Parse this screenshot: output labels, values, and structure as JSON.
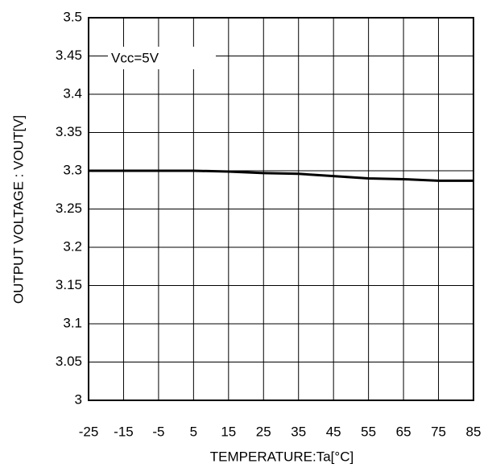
{
  "chart_data": {
    "type": "line",
    "x_label": "TEMPERATURE:Ta[°C]",
    "y_label": "OUTPUT VOLTAGE : VOUT[V]",
    "annotation": "Vcc=5V",
    "x": [
      -25,
      -15,
      -5,
      5,
      15,
      25,
      35,
      45,
      55,
      65,
      75,
      85
    ],
    "series": [
      {
        "color": "#000000",
        "values": [
          3.3,
          3.3,
          3.3,
          3.3,
          3.299,
          3.297,
          3.296,
          3.293,
          3.29,
          3.289,
          3.287,
          3.287
        ]
      }
    ],
    "xlim": [
      -25,
      85
    ],
    "xticks": [
      -25,
      -15,
      -5,
      5,
      15,
      25,
      35,
      45,
      55,
      65,
      75,
      85
    ],
    "ylim": [
      3,
      3.5
    ],
    "yticks": [
      3,
      3.05,
      3.1,
      3.15,
      3.2,
      3.25,
      3.3,
      3.35,
      3.4,
      3.45,
      3.5
    ],
    "grid": true
  }
}
